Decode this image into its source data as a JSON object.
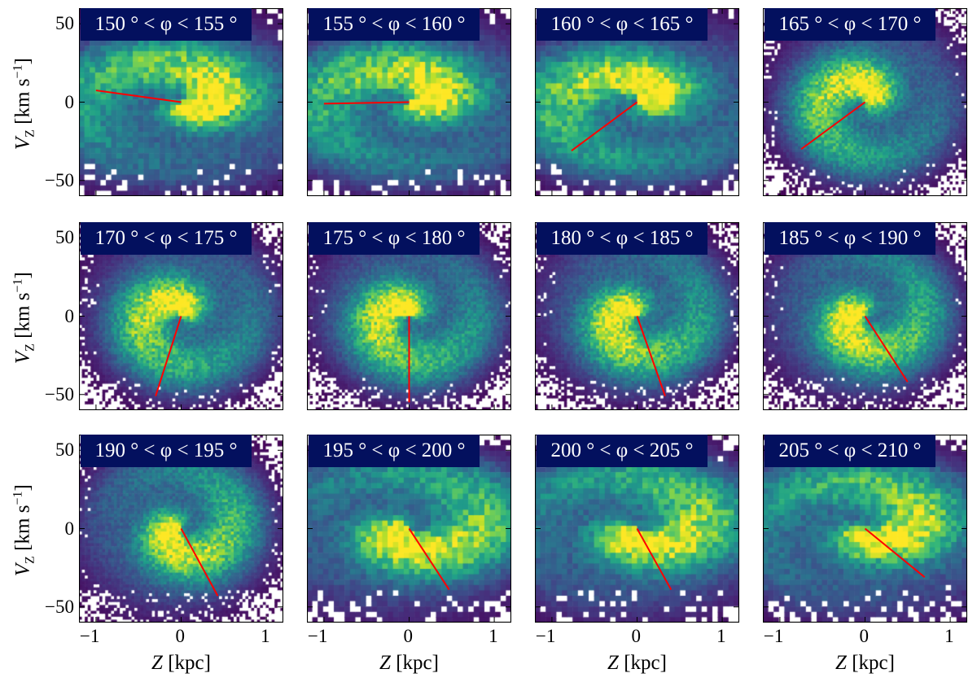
{
  "chart_data": [
    {
      "type": "heatmap",
      "title": "150 ° < φ < 155 °",
      "line_end": [
        -1.0,
        7.5
      ]
    },
    {
      "type": "heatmap",
      "title": "155 ° < φ < 160 °",
      "line_end": [
        -1.0,
        -1
      ]
    },
    {
      "type": "heatmap",
      "title": "160 ° < φ < 165 °",
      "line_end": [
        -0.77,
        -31
      ]
    },
    {
      "type": "heatmap",
      "title": "165 ° < φ < 170 °",
      "line_end": [
        -0.75,
        -30
      ]
    },
    {
      "type": "heatmap",
      "title": "170 ° < φ < 175 °",
      "line_end": [
        -0.3,
        -51
      ]
    },
    {
      "type": "heatmap",
      "title": "175 ° < φ < 180 °",
      "line_end": [
        0.0,
        -55
      ]
    },
    {
      "type": "heatmap",
      "title": "180 ° < φ < 185 °",
      "line_end": [
        0.33,
        -51
      ]
    },
    {
      "type": "heatmap",
      "title": "185 ° < φ < 190 °",
      "line_end": [
        0.5,
        -42
      ]
    },
    {
      "type": "heatmap",
      "title": "190 ° < φ < 195 °",
      "line_end": [
        0.43,
        -43
      ]
    },
    {
      "type": "heatmap",
      "title": "195 ° < φ < 200 °",
      "line_end": [
        0.47,
        -39
      ]
    },
    {
      "type": "heatmap",
      "title": "200 ° < φ < 205 °",
      "line_end": [
        0.4,
        -39
      ]
    },
    {
      "type": "heatmap",
      "title": "205 ° < φ < 210 °",
      "line_end": [
        0.7,
        -31
      ]
    }
  ],
  "axes": {
    "xlabel_var": "Z",
    "xlabel_unit": " [kpc]",
    "ylabel_var": "V",
    "ylabel_sub": "Z",
    "ylabel_unit": " [km s",
    "ylabel_exp": "−1",
    "ylabel_close": "]",
    "xlim": [
      -1.2,
      1.2
    ],
    "ylim": [
      -60,
      60
    ],
    "xticks": [
      "−1",
      "0",
      "1"
    ],
    "xtick_values": [
      -1,
      0,
      1
    ],
    "yticks": [
      "50",
      "0",
      "−50"
    ],
    "ytick_values": [
      50,
      0,
      -50
    ]
  },
  "colormap": "viridis",
  "line_color": "#ff0000",
  "title_bg": "#03105e",
  "empty_bin_color": "#ffffff"
}
